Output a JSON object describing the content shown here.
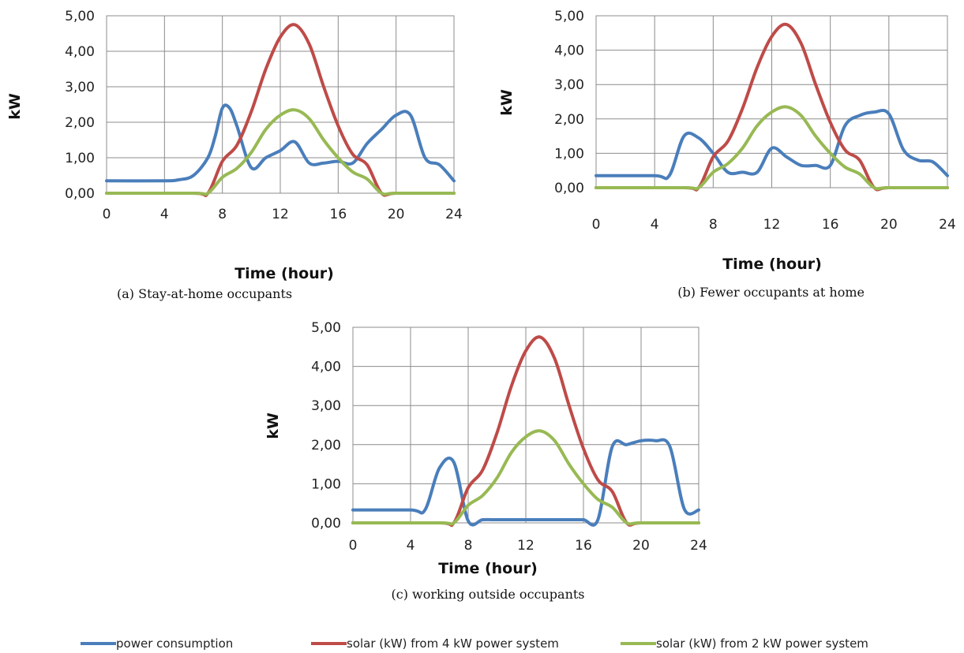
{
  "chart_data": [
    {
      "type": "line",
      "caption": "(a) Stay-at-home occupants",
      "xlabel": "Time (hour)",
      "ylabel": "kW",
      "xlim": [
        0,
        24
      ],
      "ylim": [
        0,
        5
      ],
      "xticks": [
        "0",
        "4",
        "8",
        "12",
        "16",
        "20",
        "24"
      ],
      "yticks": [
        "0,00",
        "1,00",
        "2,00",
        "3,00",
        "4,00",
        "5,00"
      ],
      "grid": true,
      "series": [
        {
          "name": "power consumption",
          "color": "#4a7ebb",
          "x": [
            0,
            4,
            5,
            6,
            7,
            7.5,
            8,
            8.5,
            9,
            10,
            11,
            12,
            13,
            14,
            15,
            16,
            17,
            18,
            19,
            20,
            21,
            22,
            23,
            24
          ],
          "y": [
            0.35,
            0.35,
            0.38,
            0.5,
            1.0,
            1.6,
            2.4,
            2.4,
            1.9,
            0.72,
            1.0,
            1.2,
            1.45,
            0.85,
            0.85,
            0.9,
            0.85,
            1.4,
            1.8,
            2.2,
            2.2,
            1.0,
            0.8,
            0.35
          ]
        },
        {
          "name": "solar (kW) from 4 kW power system",
          "color": "#be4b48",
          "x": [
            0,
            6,
            7,
            8,
            9,
            10,
            11,
            12,
            13,
            14,
            15,
            16,
            17,
            18,
            19,
            20,
            24
          ],
          "y": [
            0,
            0,
            0,
            0.9,
            1.35,
            2.3,
            3.5,
            4.4,
            4.75,
            4.2,
            3.0,
            1.9,
            1.1,
            0.8,
            0,
            0,
            0
          ]
        },
        {
          "name": "solar (kW) from 2 kW power system",
          "color": "#98b954",
          "x": [
            0,
            6,
            7,
            8,
            9,
            10,
            11,
            12,
            13,
            14,
            15,
            16,
            17,
            18,
            19,
            20,
            24
          ],
          "y": [
            0,
            0,
            0,
            0.45,
            0.7,
            1.15,
            1.8,
            2.2,
            2.35,
            2.1,
            1.5,
            1.0,
            0.6,
            0.4,
            0,
            0,
            0
          ]
        }
      ]
    },
    {
      "type": "line",
      "caption": "(b) Fewer occupants at home",
      "xlabel": "Time (hour)",
      "ylabel": "kW",
      "xlim": [
        0,
        24
      ],
      "ylim": [
        0,
        5
      ],
      "xticks": [
        "0",
        "4",
        "8",
        "12",
        "16",
        "20",
        "24"
      ],
      "yticks": [
        "0,00",
        "1,00",
        "2,00",
        "3,00",
        "4,00",
        "5,00"
      ],
      "grid": true,
      "series": [
        {
          "name": "power consumption",
          "color": "#4a7ebb",
          "x": [
            0,
            4,
            5,
            6,
            7,
            8,
            9,
            10,
            11,
            12,
            13,
            14,
            15,
            16,
            17,
            18,
            19,
            20,
            21,
            22,
            23,
            24
          ],
          "y": [
            0.35,
            0.35,
            0.35,
            1.5,
            1.45,
            1.0,
            0.45,
            0.45,
            0.45,
            1.15,
            0.9,
            0.65,
            0.65,
            0.65,
            1.8,
            2.1,
            2.2,
            2.15,
            1.1,
            0.8,
            0.75,
            0.35
          ]
        },
        {
          "name": "solar (kW) from 4 kW power system",
          "color": "#be4b48",
          "x": [
            0,
            6,
            7,
            8,
            9,
            10,
            11,
            12,
            13,
            14,
            15,
            16,
            17,
            18,
            19,
            20,
            24
          ],
          "y": [
            0,
            0,
            0,
            0.9,
            1.35,
            2.3,
            3.5,
            4.4,
            4.75,
            4.2,
            3.0,
            1.9,
            1.1,
            0.8,
            0,
            0,
            0
          ]
        },
        {
          "name": "solar (kW) from 2 kW power system",
          "color": "#98b954",
          "x": [
            0,
            6,
            7,
            8,
            9,
            10,
            11,
            12,
            13,
            14,
            15,
            16,
            17,
            18,
            19,
            20,
            24
          ],
          "y": [
            0,
            0,
            0,
            0.45,
            0.7,
            1.15,
            1.8,
            2.2,
            2.35,
            2.1,
            1.5,
            1.0,
            0.6,
            0.4,
            0,
            0,
            0
          ]
        }
      ]
    },
    {
      "type": "line",
      "caption": "(c) working outside occupants",
      "xlabel": "Time (hour)",
      "ylabel": "kW",
      "xlim": [
        0,
        24
      ],
      "ylim": [
        0,
        5
      ],
      "xticks": [
        "0",
        "4",
        "8",
        "12",
        "16",
        "20",
        "24"
      ],
      "yticks": [
        "0,00",
        "1,00",
        "2,00",
        "3,00",
        "4,00",
        "5,00"
      ],
      "grid": true,
      "series": [
        {
          "name": "power consumption",
          "color": "#4a7ebb",
          "x": [
            0,
            4,
            5,
            6,
            7,
            8,
            9,
            10,
            11,
            12,
            13,
            14,
            15,
            16,
            17,
            18,
            19,
            20,
            21,
            22,
            23,
            24
          ],
          "y": [
            0.33,
            0.33,
            0.33,
            1.4,
            1.55,
            0.05,
            0.08,
            0.08,
            0.08,
            0.08,
            0.08,
            0.08,
            0.08,
            0.08,
            0.08,
            1.95,
            2.0,
            2.1,
            2.1,
            1.95,
            0.35,
            0.33
          ]
        },
        {
          "name": "solar (kW) from 4 kW power system",
          "color": "#be4b48",
          "x": [
            0,
            6,
            7,
            8,
            9,
            10,
            11,
            12,
            13,
            14,
            15,
            16,
            17,
            18,
            19,
            20,
            24
          ],
          "y": [
            0,
            0,
            0,
            0.9,
            1.35,
            2.3,
            3.5,
            4.4,
            4.75,
            4.2,
            3.0,
            1.9,
            1.1,
            0.8,
            0,
            0,
            0
          ]
        },
        {
          "name": "solar (kW) from 2 kW power system",
          "color": "#98b954",
          "x": [
            0,
            6,
            7,
            8,
            9,
            10,
            11,
            12,
            13,
            14,
            15,
            16,
            17,
            18,
            19,
            20,
            24
          ],
          "y": [
            0,
            0,
            0,
            0.45,
            0.7,
            1.15,
            1.8,
            2.2,
            2.35,
            2.1,
            1.5,
            1.0,
            0.6,
            0.4,
            0,
            0,
            0
          ]
        }
      ]
    }
  ],
  "legend": {
    "items": [
      {
        "label": "power consumption",
        "color": "#4a7ebb"
      },
      {
        "label": "solar (kW) from 4 kW power system",
        "color": "#be4b48"
      },
      {
        "label": "solar (kW) from 2 kW power system",
        "color": "#98b954"
      }
    ]
  }
}
